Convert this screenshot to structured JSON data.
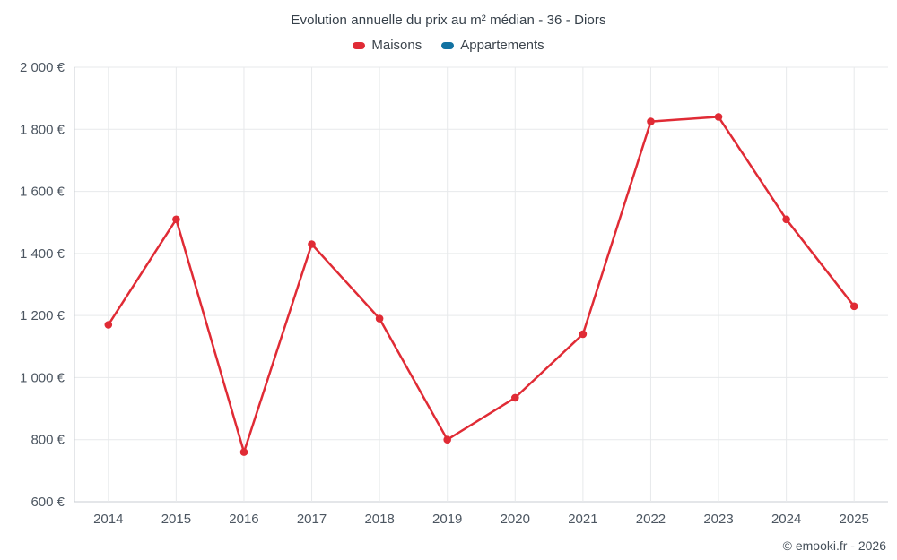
{
  "title": "Evolution annuelle du prix au m² médian - 36 - Diors",
  "legend": [
    {
      "label": "Maisons",
      "color": "#e02b35"
    },
    {
      "label": "Appartements",
      "color": "#1272a2"
    }
  ],
  "footer": "© emooki.fr - 2026",
  "chart_data": {
    "type": "line",
    "title": "Evolution annuelle du prix au m² médian - 36 - Diors",
    "x": [
      2014,
      2015,
      2016,
      2017,
      2018,
      2019,
      2020,
      2021,
      2022,
      2023,
      2024,
      2025
    ],
    "series": [
      {
        "name": "Maisons",
        "color": "#e02b35",
        "values": [
          1170,
          1510,
          760,
          1430,
          1190,
          800,
          935,
          1140,
          1825,
          1840,
          1510,
          1230
        ]
      },
      {
        "name": "Appartements",
        "color": "#1272a2",
        "values": []
      }
    ],
    "xlabel": "",
    "ylabel": "",
    "ylim": [
      600,
      2000
    ],
    "ytick_step": 200,
    "ytick_suffix": " €",
    "grid": true,
    "legend_position": "top"
  }
}
